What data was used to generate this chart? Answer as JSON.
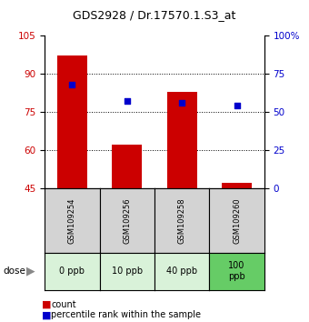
{
  "title": "GDS2928 / Dr.17570.1.S3_at",
  "samples": [
    "GSM109254",
    "GSM109256",
    "GSM109258",
    "GSM109260"
  ],
  "doses": [
    "0 ppb",
    "10 ppb",
    "40 ppb",
    "100\nppb"
  ],
  "dose_colors": [
    "#d9f2d9",
    "#d9f2d9",
    "#d9f2d9",
    "#66cc66"
  ],
  "bar_values": [
    97,
    62,
    83,
    47
  ],
  "scatter_values": [
    68,
    57,
    56,
    54
  ],
  "bar_bottom": 45,
  "left_ylim": [
    45,
    105
  ],
  "left_yticks": [
    45,
    60,
    75,
    90,
    105
  ],
  "right_ylim": [
    0,
    100
  ],
  "right_yticks": [
    0,
    25,
    50,
    75,
    100
  ],
  "right_yticklabels": [
    "0",
    "25",
    "50",
    "75",
    "100%"
  ],
  "bar_color": "#cc0000",
  "scatter_color": "#0000cc",
  "left_tick_color": "#cc0000",
  "right_tick_color": "#0000cc",
  "sample_bg_color": "#d3d3d3",
  "legend_count_color": "#cc0000",
  "legend_pct_color": "#0000cc"
}
